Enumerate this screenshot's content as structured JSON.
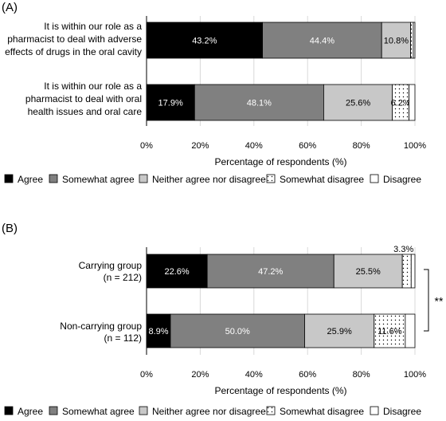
{
  "panels": [
    {
      "label": "(A)",
      "xlabel": "Percentage of respondents (%)",
      "chart_data": {
        "type": "bar",
        "orientation": "horizontal",
        "stacked": true,
        "categories": [
          [
            "It is within our role as a",
            "pharmacist to deal with adverse",
            "effects of drugs in the oral cavity"
          ],
          [
            "It is within our role as a",
            "pharmacist to deal with oral",
            "health issues and oral care"
          ]
        ],
        "series": [
          {
            "name": "Agree",
            "values": [
              43.2,
              17.9
            ]
          },
          {
            "name": "Somewhat agree",
            "values": [
              44.4,
              48.1
            ]
          },
          {
            "name": "Neither agree nor disagree",
            "values": [
              10.8,
              25.6
            ]
          },
          {
            "name": "Somewhat disagree",
            "values": [
              1.0,
              6.2
            ]
          },
          {
            "name": "Disagree",
            "values": [
              0.6,
              2.2
            ]
          }
        ],
        "data_labels": [
          [
            "43.2%",
            "44.4%",
            "10.8%",
            "",
            ""
          ],
          [
            "17.9%",
            "48.1%",
            "25.6%",
            "6.2%",
            ""
          ]
        ],
        "xticks": [
          "0%",
          "20%",
          "40%",
          "60%",
          "80%",
          "100%"
        ],
        "xlim": [
          0,
          100
        ],
        "grid": "vertical",
        "legend": "bottom"
      }
    },
    {
      "label": "(B)",
      "xlabel": "Percentage of respondents (%)",
      "chart_data": {
        "type": "bar",
        "orientation": "horizontal",
        "stacked": true,
        "categories": [
          [
            "Carrying group",
            "(n = 212)"
          ],
          [
            "Non-carrying group",
            "(n = 112)"
          ]
        ],
        "series": [
          {
            "name": "Agree",
            "values": [
              22.6,
              8.9
            ]
          },
          {
            "name": "Somewhat agree",
            "values": [
              47.2,
              50.0
            ]
          },
          {
            "name": "Neither agree nor disagree",
            "values": [
              25.5,
              25.9
            ]
          },
          {
            "name": "Somewhat disagree",
            "values": [
              3.3,
              11.6
            ]
          },
          {
            "name": "Disagree",
            "values": [
              1.4,
              3.6
            ]
          }
        ],
        "data_labels": [
          [
            "22.6%",
            "47.2%",
            "25.5%",
            "3.3%",
            ""
          ],
          [
            "8.9%",
            "50.0%",
            "25.9%",
            "11.6%",
            ""
          ]
        ],
        "outside_labels": [
          3
        ],
        "xticks": [
          "0%",
          "20%",
          "40%",
          "60%",
          "80%",
          "100%"
        ],
        "xlim": [
          0,
          100
        ],
        "grid": "vertical",
        "legend": "bottom",
        "significance": "**"
      }
    }
  ],
  "legend_items": [
    {
      "name": "Agree",
      "fill": "#000000",
      "pattern": false
    },
    {
      "name": "Somewhat agree",
      "fill": "#808080",
      "pattern": false
    },
    {
      "name": "Neither agree nor disagree",
      "fill": "#c8c8c8",
      "pattern": false
    },
    {
      "name": "Somewhat disagree",
      "fill": "#ffffff",
      "pattern": true
    },
    {
      "name": "Disagree",
      "fill": "#ffffff",
      "pattern": false
    }
  ],
  "colors": {
    "series_fills": [
      "#000000",
      "#808080",
      "#c8c8c8",
      "#ffffff",
      "#ffffff"
    ],
    "series_label_colors": [
      "#ffffff",
      "#ffffff",
      "#000000",
      "#000000",
      "#000000"
    ],
    "grid": "#d9d9d9",
    "stroke": "#000000"
  }
}
